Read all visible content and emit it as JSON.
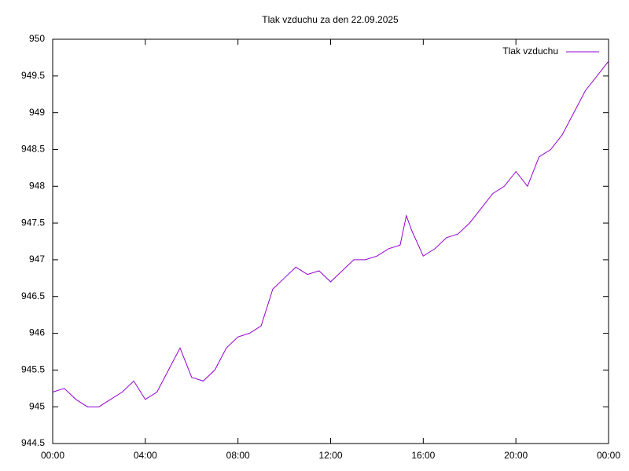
{
  "chart_data": {
    "type": "line",
    "title": "Tlak vzduchu za den 22.09.2025",
    "xlim": [
      0,
      24
    ],
    "xticks": [
      {
        "value": 0,
        "label": "00:00"
      },
      {
        "value": 4,
        "label": "04:00"
      },
      {
        "value": 8,
        "label": "08:00"
      },
      {
        "value": 12,
        "label": "12:00"
      },
      {
        "value": 16,
        "label": "16:00"
      },
      {
        "value": 20,
        "label": "20:00"
      },
      {
        "value": 24,
        "label": "00:00"
      }
    ],
    "ylim": [
      944.5,
      950
    ],
    "yticks": [
      944.5,
      945,
      945.5,
      946,
      946.5,
      947,
      947.5,
      948,
      948.5,
      949,
      949.5,
      950
    ],
    "legend": "top-right",
    "x": [
      0,
      0.5,
      1,
      1.5,
      2,
      2.5,
      3,
      3.5,
      4,
      4.5,
      5,
      5.5,
      6,
      6.5,
      7,
      7.5,
      8,
      8.5,
      9,
      9.5,
      10,
      10.5,
      11,
      11.5,
      12,
      12.5,
      13,
      13.5,
      14,
      14.5,
      15,
      15.27,
      15.5,
      16,
      16.5,
      17,
      17.5,
      18,
      18.5,
      19,
      19.5,
      20,
      20.5,
      21,
      21.5,
      22,
      22.5,
      23,
      23.5,
      24
    ],
    "series": [
      {
        "name": "Tlak vzduchu",
        "color": "#9400d3",
        "values": [
          945.2,
          945.25,
          945.1,
          945.0,
          945.0,
          945.1,
          945.2,
          945.35,
          945.1,
          945.2,
          945.5,
          945.8,
          945.4,
          945.35,
          945.5,
          945.8,
          945.95,
          946.0,
          946.1,
          946.6,
          946.75,
          946.9,
          946.8,
          946.85,
          946.7,
          946.85,
          947.0,
          947.0,
          947.05,
          947.15,
          947.2,
          947.6,
          947.4,
          947.05,
          947.15,
          947.3,
          947.35,
          947.5,
          947.7,
          947.9,
          948.0,
          948.2,
          948.0,
          948.4,
          948.5,
          948.7,
          949.0,
          949.3,
          949.5,
          949.7
        ]
      }
    ]
  }
}
